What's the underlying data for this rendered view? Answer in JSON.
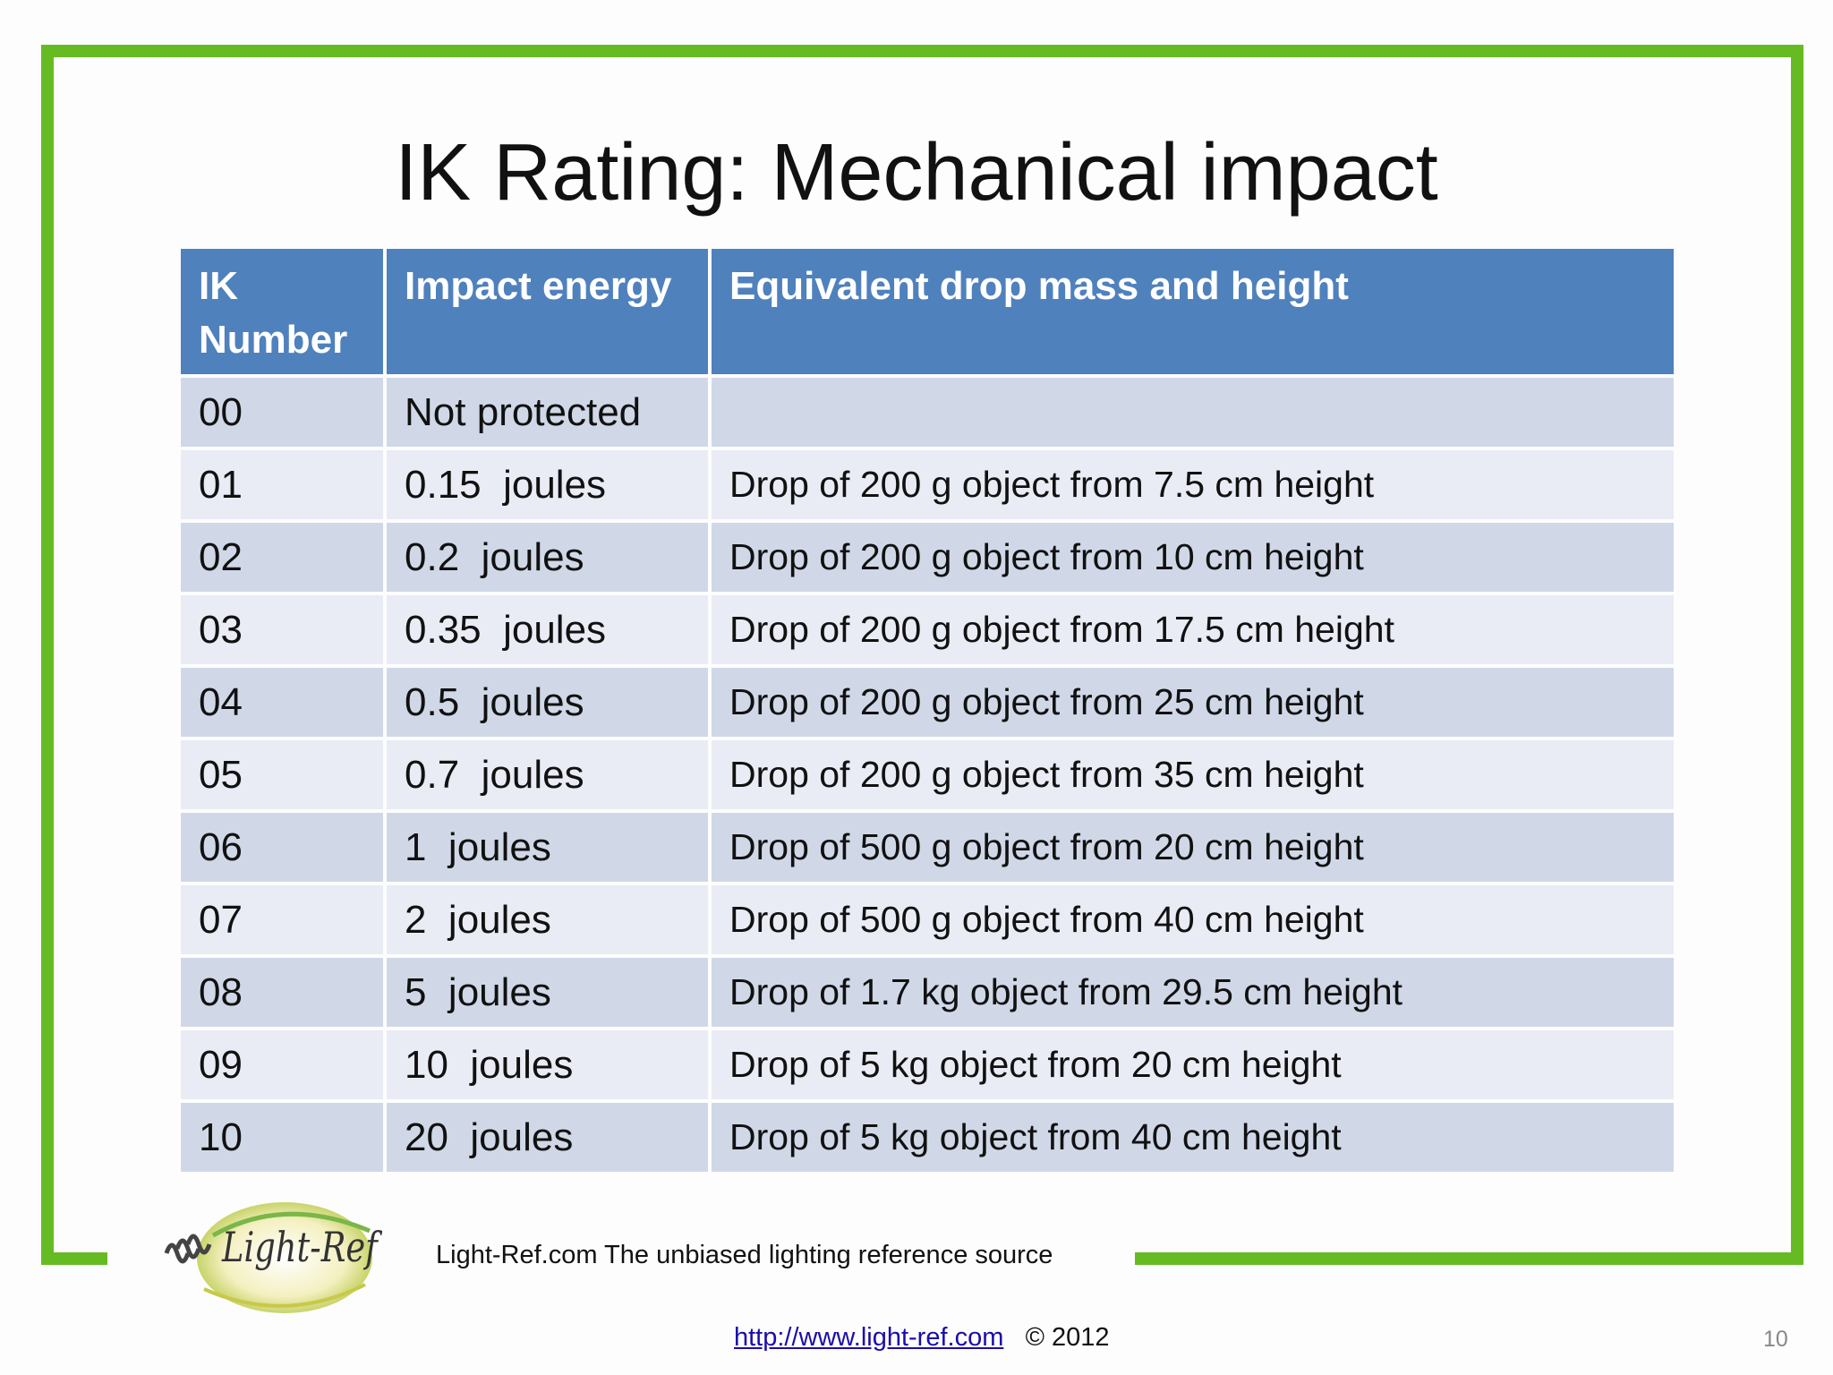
{
  "title": "IK Rating: Mechanical impact",
  "table": {
    "headers": [
      "IK Number",
      "Impact energy",
      "Equivalent drop mass and height"
    ],
    "rows": [
      [
        "00",
        "Not protected",
        ""
      ],
      [
        "01",
        "0.15  joules",
        "Drop of 200 g object from 7.5 cm height"
      ],
      [
        "02",
        "0.2  joules",
        "Drop of 200 g object from 10 cm height"
      ],
      [
        "03",
        "0.35  joules",
        "Drop of 200 g object from 17.5 cm height"
      ],
      [
        "04",
        "0.5  joules",
        "Drop of 200 g object from 25 cm height"
      ],
      [
        "05",
        "0.7  joules",
        "Drop of 200 g object from 35 cm height"
      ],
      [
        "06",
        "1  joules",
        "Drop of 500 g object from 20 cm height"
      ],
      [
        "07",
        "2  joules",
        "Drop of 500 g object from 40 cm height"
      ],
      [
        "08",
        "5  joules",
        "Drop of 1.7 kg object from 29.5 cm height"
      ],
      [
        "09",
        "10  joules",
        "Drop of 5 kg object from 20 cm height"
      ],
      [
        "10",
        "20  joules",
        "Drop of 5 kg object from 40 cm height"
      ]
    ]
  },
  "logo": {
    "text": "Light-Ref",
    "icon": "light-ref-logo-icon"
  },
  "tagline": "Light-Ref.com  The unbiased lighting reference source",
  "footer": {
    "link_text": "http://www.light-ref.com",
    "copyright": "© 2012"
  },
  "page_number": "10",
  "colors": {
    "frame": "#66bb22",
    "header": "#4f81bd",
    "row_odd": "#d0d8e8",
    "row_even": "#e9ecf4"
  }
}
